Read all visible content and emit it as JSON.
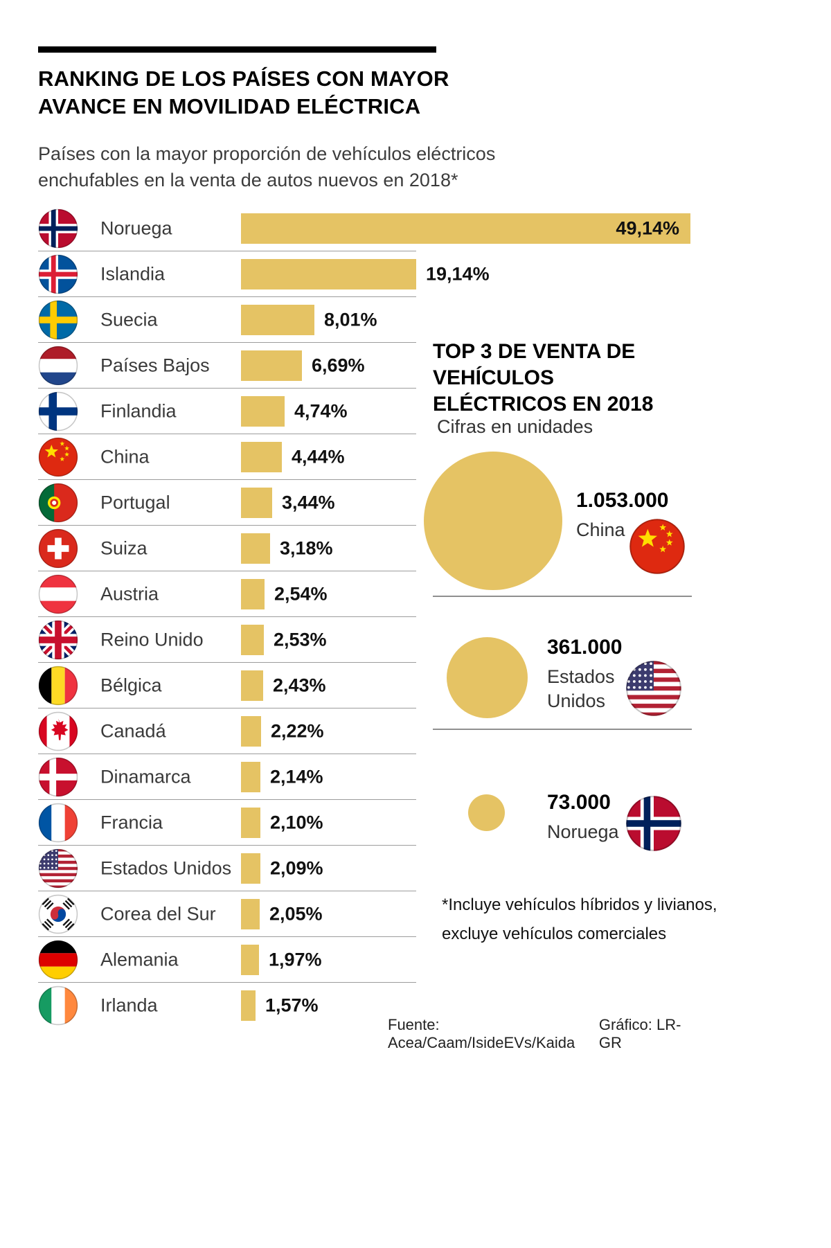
{
  "header": {
    "title_line1": "RANKING DE LOS PAÍSES CON MAYOR",
    "title_line2": "AVANCE EN MOVILIDAD ELÉCTRICA",
    "subtitle": "Países con la mayor proporción de vehículos eléctricos enchufables en la venta de autos nuevos en 2018*"
  },
  "colors": {
    "bar": "#E5C364",
    "separator": "#9c9c9c",
    "title": "#000000",
    "text": "#3a3a3a"
  },
  "chart_data": {
    "type": "bar",
    "title": "RANKING DE LOS PAÍSES CON MAYOR AVANCE EN MOVILIDAD ELÉCTRICA",
    "value_format": "percent",
    "categories": [
      "Noruega",
      "Islandia",
      "Suecia",
      "Países Bajos",
      "Finlandia",
      "China",
      "Portugal",
      "Suiza",
      "Austria",
      "Reino Unido",
      "Bélgica",
      "Canadá",
      "Dinamarca",
      "Francia",
      "Estados Unidos",
      "Corea del Sur",
      "Alemania",
      "Irlanda"
    ],
    "values": [
      49.14,
      19.14,
      8.01,
      6.69,
      4.74,
      4.44,
      3.44,
      3.18,
      2.54,
      2.53,
      2.43,
      2.22,
      2.14,
      2.1,
      2.09,
      2.05,
      1.97,
      1.57
    ],
    "rows": [
      {
        "country": "Noruega",
        "value": 49.14,
        "label": "49,14%",
        "flag": "norway"
      },
      {
        "country": "Islandia",
        "value": 19.14,
        "label": "19,14%",
        "flag": "iceland"
      },
      {
        "country": "Suecia",
        "value": 8.01,
        "label": "8,01%",
        "flag": "sweden"
      },
      {
        "country": "Países Bajos",
        "value": 6.69,
        "label": "6,69%",
        "flag": "netherlands"
      },
      {
        "country": "Finlandia",
        "value": 4.74,
        "label": "4,74%",
        "flag": "finland"
      },
      {
        "country": "China",
        "value": 4.44,
        "label": "4,44%",
        "flag": "china"
      },
      {
        "country": "Portugal",
        "value": 3.44,
        "label": "3,44%",
        "flag": "portugal"
      },
      {
        "country": "Suiza",
        "value": 3.18,
        "label": "3,18%",
        "flag": "switzerland"
      },
      {
        "country": "Austria",
        "value": 2.54,
        "label": "2,54%",
        "flag": "austria"
      },
      {
        "country": "Reino Unido",
        "value": 2.53,
        "label": "2,53%",
        "flag": "uk"
      },
      {
        "country": "Bélgica",
        "value": 2.43,
        "label": "2,43%",
        "flag": "belgium"
      },
      {
        "country": "Canadá",
        "value": 2.22,
        "label": "2,22%",
        "flag": "canada"
      },
      {
        "country": "Dinamarca",
        "value": 2.14,
        "label": "2,14%",
        "flag": "denmark"
      },
      {
        "country": "Francia",
        "value": 2.1,
        "label": "2,10%",
        "flag": "france"
      },
      {
        "country": "Estados Unidos",
        "value": 2.09,
        "label": "2,09%",
        "flag": "usa"
      },
      {
        "country": "Corea del Sur",
        "value": 2.05,
        "label": "2,05%",
        "flag": "south-korea"
      },
      {
        "country": "Alemania",
        "value": 1.97,
        "label": "1,97%",
        "flag": "germany"
      },
      {
        "country": "Irlanda",
        "value": 1.57,
        "label": "1,57%",
        "flag": "ireland"
      }
    ],
    "top3": {
      "type": "bubble",
      "title": "TOP 3 DE VENTA DE VEHÍCULOS ELÉCTRICOS EN 2018",
      "subtitle": "Cifras en unidades",
      "items": [
        {
          "country": "China",
          "units": 1053000,
          "label": "1.053.000",
          "flag": "china"
        },
        {
          "country": "Estados Unidos",
          "units": 361000,
          "label": "361.000",
          "flag": "usa"
        },
        {
          "country": "Noruega",
          "units": 73000,
          "label": "73.000",
          "flag": "norway"
        }
      ]
    },
    "footnote_line1": "*Incluye vehículos híbridos y livianos,",
    "footnote_line2": "excluye vehículos comerciales",
    "source": "Fuente: Acea/Caam/IsideEVs/Kaida",
    "credit": "Gráfico: LR-GR"
  }
}
